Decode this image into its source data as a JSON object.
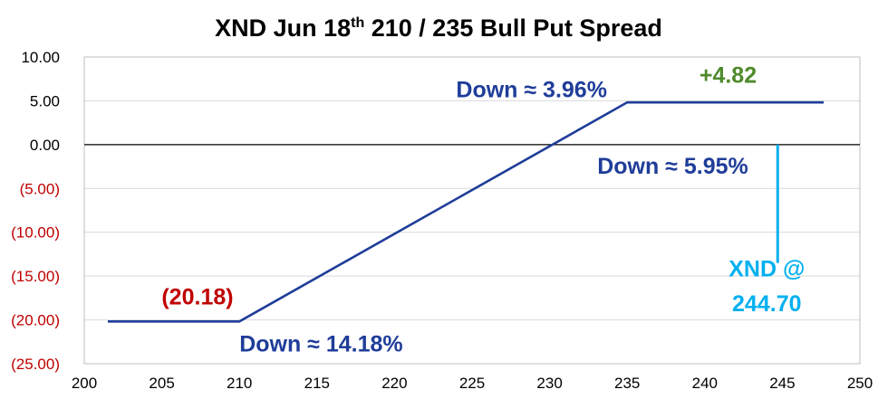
{
  "chart_data": {
    "type": "line",
    "title": "XND Jun 18",
    "title_superscript": "th",
    "title_rest": " 210 / 235 Bull Put Spread",
    "xlim": [
      200,
      250
    ],
    "ylim": [
      -25,
      10
    ],
    "x_ticks": [
      200,
      205,
      210,
      215,
      220,
      225,
      230,
      235,
      240,
      245,
      250
    ],
    "y_ticks": [
      10,
      5,
      0,
      -5,
      -10,
      -15,
      -20,
      -25
    ],
    "x_tick_labels": [
      "200",
      "205",
      "210",
      "215",
      "220",
      "225",
      "230",
      "235",
      "240",
      "245",
      "250"
    ],
    "y_tick_labels": [
      "10.00",
      "5.00",
      "0.00",
      "(5.00)",
      "(10.00)",
      "(15.00)",
      "(20.00)",
      "(25.00)"
    ],
    "grid": true,
    "series": [
      {
        "x": [
          200,
          210,
          235,
          250
        ],
        "y": [
          -20.18,
          -20.18,
          4.82,
          4.82
        ],
        "color": "#1f3d99"
      }
    ],
    "current_price": {
      "x": 244.7,
      "y_top": 0,
      "y_bottom": -13.5,
      "color": "#00b0f0"
    },
    "annotations": {
      "max_profit": "+4.82",
      "max_loss": "(20.18)",
      "down_3": "Down ≈ 3.96%",
      "down_5": "Down ≈ 5.95%",
      "down_14": "Down ≈ 14.18%",
      "price_line1": "XND @",
      "price_line2": "244.70"
    },
    "colors": {
      "positive_tick": "#000000",
      "negative_tick": "#c00000",
      "profit": "#4f8a2b",
      "loss": "#c00000",
      "blue_text": "#1f3d99",
      "price": "#00b0f0",
      "grid": "#d9d9d9"
    }
  }
}
